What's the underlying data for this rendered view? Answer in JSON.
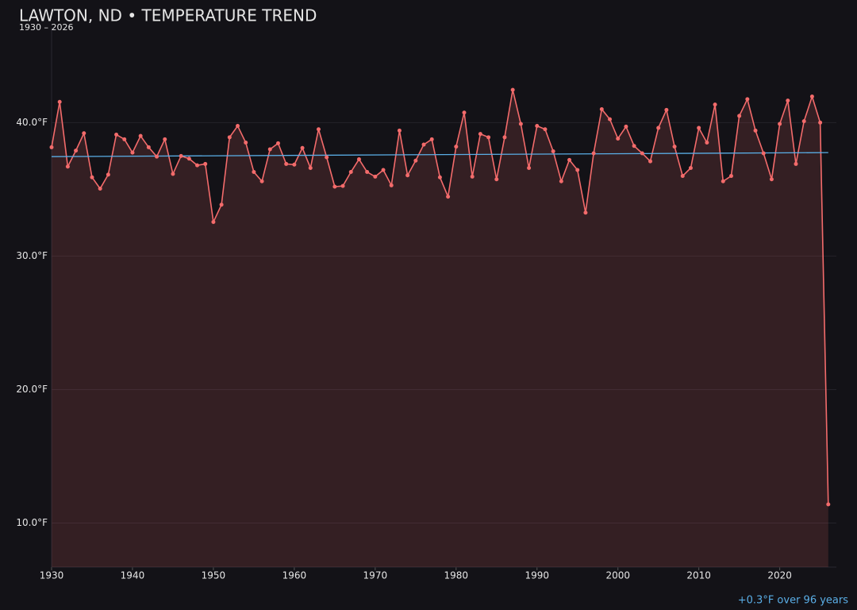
{
  "chart_data": {
    "type": "line",
    "title": "LAWTON, ND • TEMPERATURE TREND",
    "subtitle": "1930 – 2026",
    "x": [
      1930,
      1931,
      1932,
      1933,
      1934,
      1935,
      1936,
      1937,
      1938,
      1939,
      1940,
      1941,
      1942,
      1943,
      1944,
      1945,
      1946,
      1947,
      1948,
      1949,
      1950,
      1951,
      1952,
      1953,
      1954,
      1955,
      1956,
      1957,
      1958,
      1959,
      1960,
      1961,
      1962,
      1963,
      1964,
      1965,
      1966,
      1967,
      1968,
      1969,
      1970,
      1971,
      1972,
      1973,
      1974,
      1975,
      1976,
      1977,
      1978,
      1979,
      1980,
      1981,
      1982,
      1983,
      1984,
      1985,
      1986,
      1987,
      1988,
      1989,
      1990,
      1991,
      1992,
      1993,
      1994,
      1995,
      1996,
      1997,
      1998,
      1999,
      2000,
      2001,
      2002,
      2003,
      2004,
      2005,
      2006,
      2007,
      2008,
      2009,
      2010,
      2011,
      2012,
      2013,
      2014,
      2015,
      2016,
      2017,
      2018,
      2019,
      2020,
      2021,
      2022,
      2023,
      2024,
      2025,
      2026
    ],
    "values": [
      38.15,
      41.55,
      36.7,
      37.9,
      39.2,
      35.9,
      35.05,
      36.1,
      39.1,
      38.75,
      37.75,
      39.0,
      38.15,
      37.45,
      38.75,
      36.15,
      37.5,
      37.3,
      36.8,
      36.9,
      32.55,
      33.85,
      38.9,
      39.75,
      38.5,
      36.3,
      35.6,
      38.0,
      38.45,
      36.9,
      36.85,
      38.1,
      36.6,
      39.5,
      37.4,
      35.2,
      35.25,
      36.3,
      37.25,
      36.3,
      35.95,
      36.45,
      35.3,
      39.4,
      36.05,
      37.15,
      38.35,
      38.75,
      35.9,
      34.45,
      38.2,
      40.75,
      35.95,
      39.15,
      38.9,
      35.75,
      38.9,
      42.45,
      39.9,
      36.6,
      39.75,
      39.5,
      37.85,
      35.6,
      37.2,
      36.45,
      33.25,
      37.7,
      41.0,
      40.25,
      38.8,
      39.7,
      38.25,
      37.7,
      37.1,
      39.6,
      40.95,
      38.2,
      36.0,
      36.6,
      39.6,
      38.5,
      41.35,
      35.6,
      36.0,
      40.5,
      41.75,
      39.4,
      37.7,
      35.75,
      39.9,
      41.65,
      36.9,
      40.1,
      41.95,
      40.0,
      11.4
    ],
    "color": "#f36b6b",
    "trend": {
      "x": [
        1930,
        2026
      ],
      "values": [
        37.45,
        37.75
      ],
      "color": "#5aaee6",
      "label": "+0.3°F over 96 years"
    },
    "xlim": [
      1930,
      2027
    ],
    "ylim": [
      6.7,
      47.1
    ],
    "xticks": [
      1930,
      1940,
      1950,
      1960,
      1970,
      1980,
      1990,
      2000,
      2010,
      2020
    ],
    "yticks": [
      {
        "value": 10,
        "label": "10.0°F"
      },
      {
        "value": 20,
        "label": "20.0°F"
      },
      {
        "value": 30,
        "label": "30.0°F"
      },
      {
        "value": 40,
        "label": "40.0°F"
      }
    ],
    "grid": true
  }
}
